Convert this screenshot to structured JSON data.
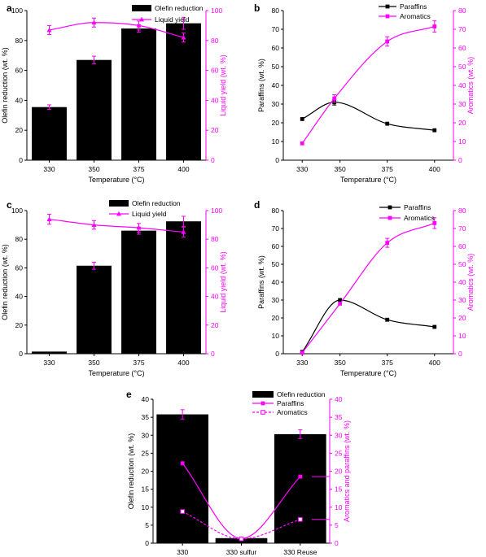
{
  "figure": {
    "colors": {
      "black": "#000000",
      "magenta": "#ff00ff",
      "white": "#ffffff"
    }
  },
  "chart_data": [
    {
      "panel": "a",
      "type": "bar",
      "categories": [
        "330",
        "350",
        "375",
        "400"
      ],
      "xlabel": "Temperature (°C)",
      "ylabel": "Olefin reduction (wt. %)",
      "ylabel_right": "Liquid yield (wt. %)",
      "ylim": [
        0,
        100
      ],
      "ylim_right": [
        0,
        100
      ],
      "yticks": [
        0,
        20,
        40,
        60,
        80,
        100
      ],
      "yticks_right": [
        0,
        20,
        40,
        60,
        80,
        100
      ],
      "bars": {
        "name": "Olefin reduction",
        "values": [
          35.5,
          67,
          88,
          91.5
        ],
        "errors": [
          1.5,
          2.5,
          2.5,
          4
        ]
      },
      "lines": [
        {
          "name": "Liquid yield",
          "axis": "right",
          "style": "solid",
          "marker": "triangle",
          "smooth": true,
          "values": [
            87,
            92,
            90,
            82
          ],
          "errors": [
            3,
            3,
            3,
            3
          ]
        }
      ],
      "legend": "top-left"
    },
    {
      "panel": "b",
      "type": "line",
      "x": [
        330,
        347,
        375,
        400
      ],
      "xlim": [
        320,
        410
      ],
      "xticks": [
        330,
        350,
        375,
        400
      ],
      "xlabel": "Temperature (°C)",
      "ylabel": "Paraffins (wt. %)",
      "ylabel_right": "Aromatics (wt. %)",
      "ylim": [
        0,
        80
      ],
      "ylim_right": [
        0,
        80
      ],
      "yticks": [
        0,
        10,
        20,
        30,
        40,
        50,
        60,
        70,
        80
      ],
      "yticks_right": [
        0,
        10,
        20,
        30,
        40,
        50,
        60,
        70,
        80
      ],
      "lines": [
        {
          "name": "Paraffins",
          "axis": "left",
          "color": "black",
          "marker": "square",
          "smooth": true,
          "values": [
            22,
            31,
            19.5,
            16
          ],
          "errors": [
            0,
            1.5,
            0,
            0
          ]
        },
        {
          "name": "Aromatics",
          "axis": "right",
          "color": "magenta",
          "marker": "square",
          "smooth": true,
          "values": [
            9,
            33,
            63.5,
            71.5
          ],
          "errors": [
            0,
            2,
            2.5,
            3
          ]
        }
      ],
      "legend": "top-center"
    },
    {
      "panel": "c",
      "type": "bar",
      "categories": [
        "330",
        "350",
        "375",
        "400"
      ],
      "xlabel": "Temperature (°C)",
      "ylabel": "Olefin reduction (wt. %)",
      "ylabel_right": "Liquid yield (wt. %)",
      "ylim": [
        0,
        100
      ],
      "ylim_right": [
        0,
        100
      ],
      "yticks": [
        0,
        20,
        40,
        60,
        80,
        100
      ],
      "yticks_right": [
        0,
        20,
        40,
        60,
        80,
        100
      ],
      "bars": {
        "name": "Olefin reduction",
        "values": [
          1.5,
          61.5,
          86,
          92.5
        ],
        "errors": [
          0,
          2.5,
          2.5,
          3.5
        ]
      },
      "lines": [
        {
          "name": "Liquid yield",
          "axis": "right",
          "style": "solid",
          "marker": "triangle",
          "smooth": true,
          "values": [
            94,
            90,
            88,
            85
          ],
          "errors": [
            3.5,
            3,
            3,
            3.5
          ]
        }
      ],
      "legend": "top-center"
    },
    {
      "panel": "d",
      "type": "line",
      "x": [
        330,
        350,
        375,
        400
      ],
      "xlim": [
        320,
        410
      ],
      "xticks": [
        330,
        350,
        375,
        400
      ],
      "xlabel": "Temperature (°C)",
      "ylabel": "Paraffins (wt. %)",
      "ylabel_right": "Aromatics (wt. %)",
      "ylim": [
        0,
        80
      ],
      "ylim_right": [
        0,
        80
      ],
      "yticks": [
        0,
        10,
        20,
        30,
        40,
        50,
        60,
        70,
        80
      ],
      "yticks_right": [
        0,
        10,
        20,
        30,
        40,
        50,
        60,
        70,
        80
      ],
      "lines": [
        {
          "name": "Paraffins",
          "axis": "left",
          "color": "black",
          "marker": "square",
          "smooth": true,
          "values": [
            1,
            30,
            19,
            15
          ],
          "errors": [
            0,
            0,
            0,
            0
          ]
        },
        {
          "name": "Aromatics",
          "axis": "right",
          "color": "magenta",
          "marker": "square",
          "smooth": true,
          "values": [
            0.5,
            28,
            62,
            73
          ],
          "errors": [
            0,
            0,
            2.5,
            3
          ]
        }
      ],
      "legend": "top-center"
    },
    {
      "panel": "e",
      "type": "bar",
      "categories": [
        "330",
        "330 sulfur",
        "330 Reuse"
      ],
      "xlabel": "",
      "ylabel": "Olefin reduction (wt. %)",
      "ylabel_right": "Aromatics and paraffins (wt. %)",
      "ylim": [
        0,
        40
      ],
      "ylim_right": [
        0,
        40
      ],
      "yticks": [
        0,
        5,
        10,
        15,
        20,
        25,
        30,
        35,
        40
      ],
      "yticks_right": [
        0,
        5,
        10,
        15,
        20,
        25,
        30,
        35,
        40
      ],
      "bars": {
        "name": "Olefin reduction",
        "values": [
          35.8,
          1.4,
          30.3
        ],
        "errors": [
          1.3,
          0,
          1.2
        ]
      },
      "lines": [
        {
          "name": "Paraffins",
          "axis": "right",
          "style": "solid",
          "marker": "square",
          "smooth": true,
          "values": [
            22.2,
            1.3,
            18.5
          ],
          "errors": [
            0,
            0,
            0
          ]
        },
        {
          "name": "Aromatics",
          "axis": "right",
          "style": "dashed",
          "marker": "square-open",
          "smooth": true,
          "values": [
            8.8,
            1.2,
            6.6
          ],
          "errors": [
            0,
            0,
            0
          ]
        }
      ],
      "legend": "top-right"
    }
  ]
}
